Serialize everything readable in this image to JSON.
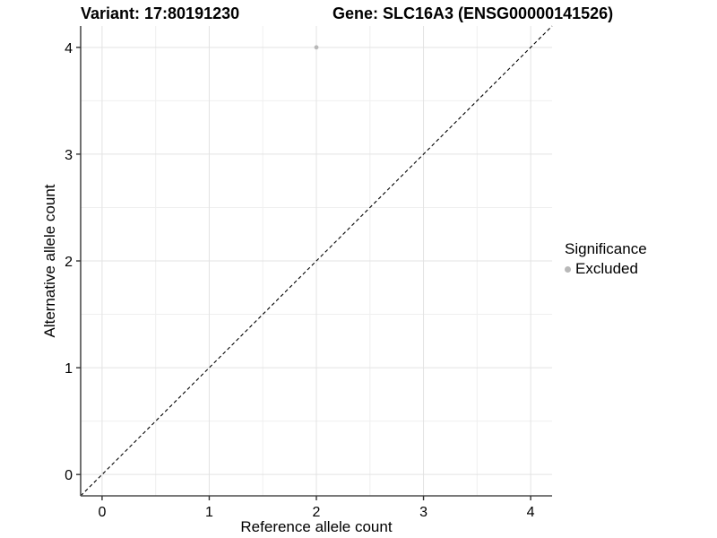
{
  "header": {
    "title_left": "Variant: 17:80191230",
    "title_right": "Gene: SLC16A3 (ENSG00000141526)"
  },
  "legend": {
    "title": "Significance",
    "items": [
      {
        "label": "Excluded",
        "color": "#b8b8b8"
      }
    ]
  },
  "colors": {
    "background": "#ffffff",
    "grid_major": "#e3e3e3",
    "grid_minor": "#efefef",
    "axis_line": "#4d4d4d",
    "tick_mark": "#333333",
    "tick_text": "#000000",
    "point": "#b8b8b8",
    "reference_line": "#000000"
  },
  "chart_data": {
    "type": "scatter",
    "title_left": "Variant: 17:80191230",
    "title_right": "Gene: SLC16A3 (ENSG00000141526)",
    "xlabel": "Reference allele count",
    "ylabel": "Alternative allele count",
    "xlim": [
      -0.2,
      4.2
    ],
    "ylim": [
      -0.2,
      4.2
    ],
    "x_ticks": [
      0,
      1,
      2,
      3,
      4
    ],
    "y_ticks": [
      0,
      1,
      2,
      3,
      4
    ],
    "x_minor_ticks": [
      0.5,
      1.5,
      2.5,
      3.5
    ],
    "y_minor_ticks": [
      0.5,
      1.5,
      2.5,
      3.5
    ],
    "grid": true,
    "legend_position": "right",
    "series": [
      {
        "name": "Excluded",
        "color": "#b8b8b8",
        "points": [
          {
            "x": 2,
            "y": 4
          }
        ]
      }
    ],
    "reference_line": {
      "type": "identity",
      "style": "dashed",
      "from": [
        -0.2,
        -0.2
      ],
      "to": [
        4.2,
        4.2
      ],
      "color": "#000000"
    }
  }
}
